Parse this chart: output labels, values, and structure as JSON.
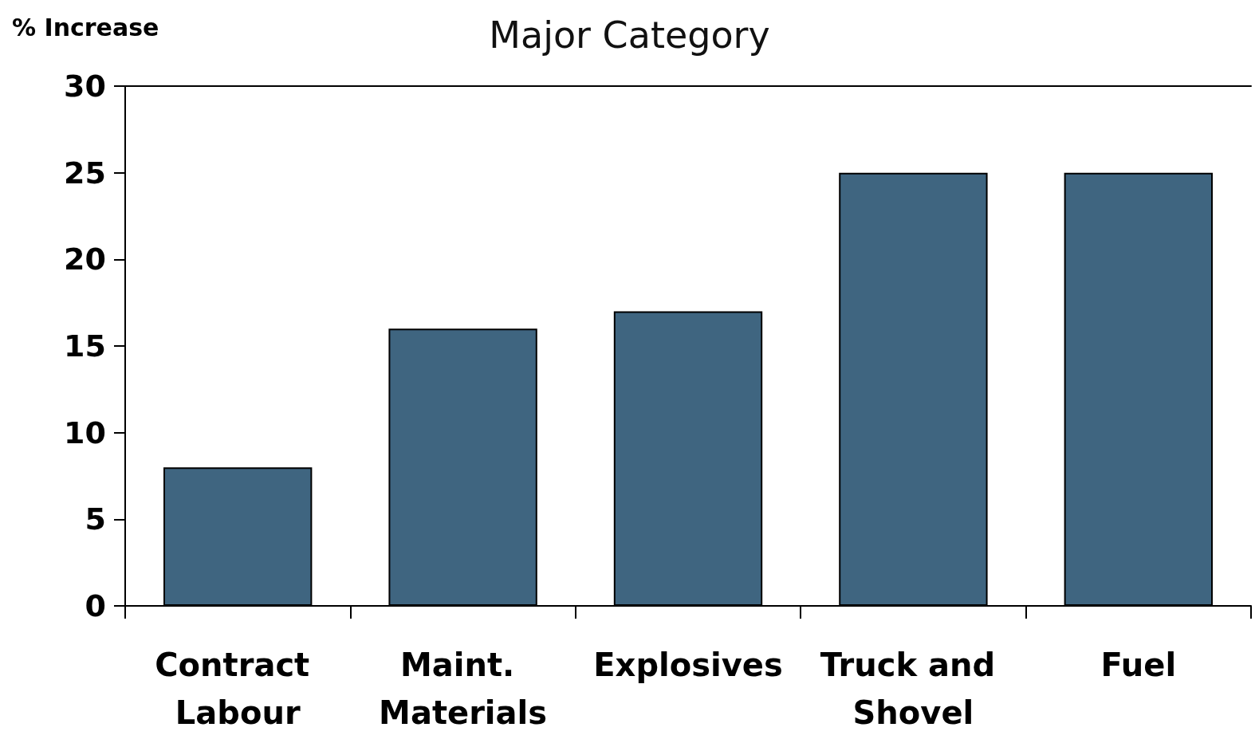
{
  "chart_data": {
    "type": "bar",
    "title": "Major Category",
    "ylabel": "% Increase",
    "categories": [
      "Contract Labour",
      "Maint. Materials",
      "Explosives",
      "Truck and Shovel",
      "Fuel"
    ],
    "values": [
      8,
      16,
      17,
      25,
      25
    ],
    "color": "#3f6580",
    "ylim": [
      0,
      30
    ],
    "yticks": [
      0,
      5,
      10,
      15,
      20,
      25,
      30
    ],
    "grid": false
  }
}
